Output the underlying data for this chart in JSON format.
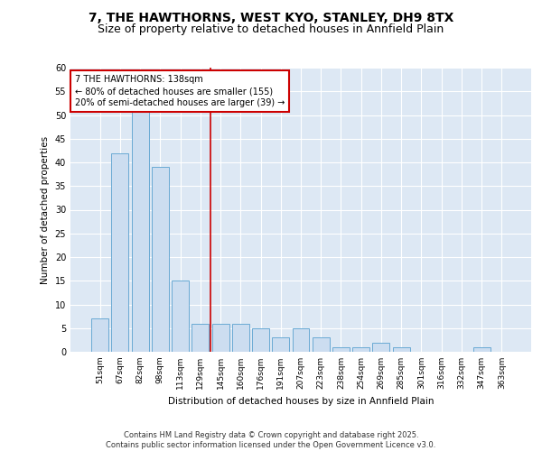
{
  "title1": "7, THE HAWTHORNS, WEST KYO, STANLEY, DH9 8TX",
  "title2": "Size of property relative to detached houses in Annfield Plain",
  "xlabel": "Distribution of detached houses by size in Annfield Plain",
  "ylabel": "Number of detached properties",
  "categories": [
    "51sqm",
    "67sqm",
    "82sqm",
    "98sqm",
    "113sqm",
    "129sqm",
    "145sqm",
    "160sqm",
    "176sqm",
    "191sqm",
    "207sqm",
    "223sqm",
    "238sqm",
    "254sqm",
    "269sqm",
    "285sqm",
    "301sqm",
    "316sqm",
    "332sqm",
    "347sqm",
    "363sqm"
  ],
  "values": [
    7,
    42,
    51,
    39,
    15,
    6,
    6,
    6,
    5,
    3,
    5,
    3,
    1,
    1,
    2,
    1,
    0,
    0,
    0,
    1,
    0
  ],
  "bar_color": "#ccddf0",
  "bar_edge_color": "#6aaad4",
  "background_color": "#dde8f4",
  "grid_color": "#ffffff",
  "red_line_x": 5.5,
  "annotation_text": "7 THE HAWTHORNS: 138sqm\n← 80% of detached houses are smaller (155)\n20% of semi-detached houses are larger (39) →",
  "annotation_box_color": "#ffffff",
  "annotation_box_edge": "#cc0000",
  "ylim": [
    0,
    60
  ],
  "yticks": [
    0,
    5,
    10,
    15,
    20,
    25,
    30,
    35,
    40,
    45,
    50,
    55,
    60
  ],
  "footer": "Contains HM Land Registry data © Crown copyright and database right 2025.\nContains public sector information licensed under the Open Government Licence v3.0.",
  "title_fontsize": 10,
  "subtitle_fontsize": 9
}
